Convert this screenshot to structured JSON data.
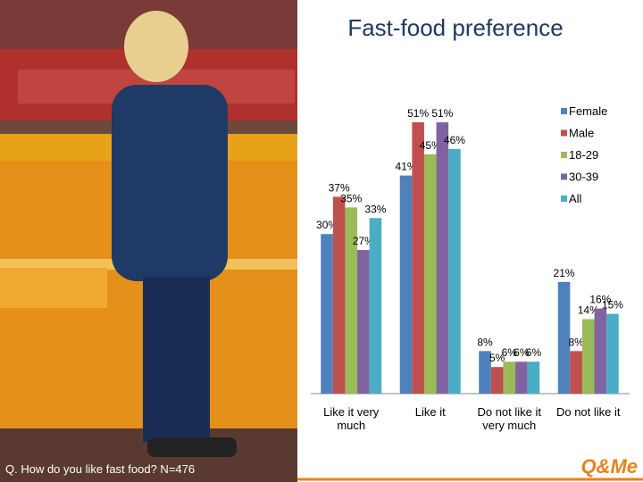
{
  "chart_data": {
    "type": "bar",
    "title": "Fast-food preference",
    "footnote": "Q. How do you like fast food? N=476",
    "logo": "Q&Me",
    "categories": [
      "Like it very much",
      "Like it",
      "Do not like it very much",
      "Do not like it"
    ],
    "series": [
      {
        "name": "Female",
        "color": "#4f81bd",
        "values": [
          30,
          41,
          8,
          21
        ],
        "value_labels": [
          "30%",
          "41%",
          "8%",
          "21%"
        ]
      },
      {
        "name": "Male",
        "color": "#c0504d",
        "values": [
          37,
          51,
          5,
          8
        ],
        "value_labels": [
          "37%",
          "51%",
          "5%",
          "8%"
        ]
      },
      {
        "name": "18-29",
        "color": "#9bbb59",
        "values": [
          35,
          45,
          6,
          14
        ],
        "value_labels": [
          "35%",
          "45%",
          "6%",
          "14%"
        ]
      },
      {
        "name": "30-39",
        "color": "#8064a2",
        "values": [
          27,
          51,
          6,
          16
        ],
        "value_labels": [
          "27%",
          "51%",
          "6%",
          "16%"
        ]
      },
      {
        "name": "All",
        "color": "#4bacc6",
        "values": [
          33,
          46,
          6,
          15
        ],
        "value_labels": [
          "33%",
          "46%",
          "6%",
          "15%"
        ]
      }
    ],
    "legend": "right"
  }
}
